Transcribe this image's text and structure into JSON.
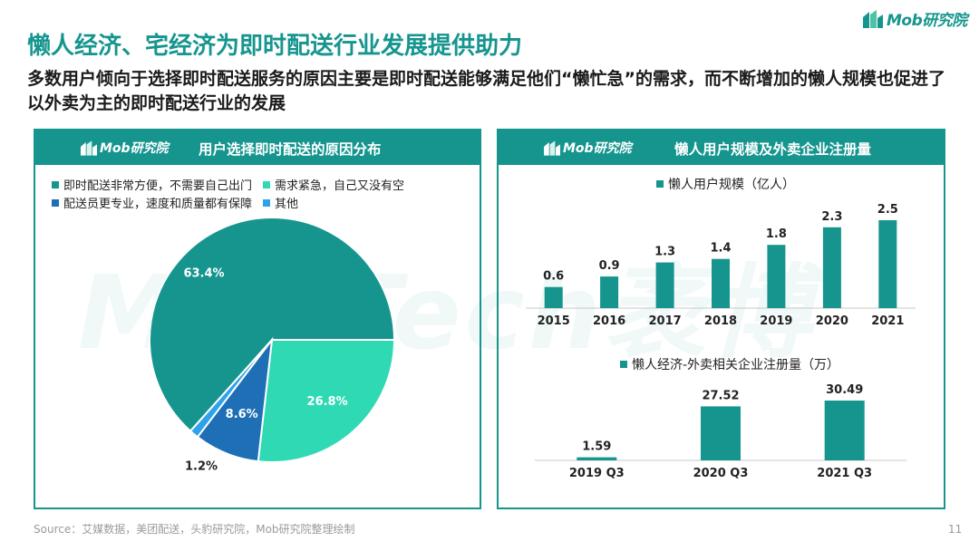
{
  "brand": {
    "logo_text": "Mob研究院",
    "watermark_text": "MobTech袤博"
  },
  "title": "懒人经济、宅经济为即时配送行业发展提供助力",
  "subtitle": "多数用户倾向于选择即时配送服务的原因主要是即时配送能够满足他们“懒忙急”的需求，而不断增加的懒人规模也促进了以外卖为主的即时配送行业的发展",
  "left_panel": {
    "logo_text": "Mob研究院",
    "header_title": "用户选择即时配送的原因分布"
  },
  "right_panel": {
    "logo_text": "Mob研究院",
    "header_title": "懒人用户规模及外卖企业注册量"
  },
  "source": "Source：艾媒数据，美团配送，头豹研究院，Mob研究院整理绘制",
  "page_number": "11",
  "colors": {
    "brand": "#16958f",
    "pie": [
      "#16958f",
      "#2fd9b4",
      "#1e6fb5",
      "#2ea2ea"
    ]
  },
  "chart_data": [
    {
      "type": "pie",
      "title": "用户选择即时配送的原因分布",
      "categories": [
        "即时配送非常方便，不需要自己出门",
        "需求紧急，自己又没有空",
        "配送员更专业，速度和质量都有保障",
        "其他"
      ],
      "values": [
        63.4,
        26.8,
        8.6,
        1.2
      ],
      "labels": [
        "63.4%",
        "26.8%",
        "8.6%",
        "1.2%"
      ],
      "unit": "%",
      "legend_position": "top-left"
    },
    {
      "type": "bar",
      "series": [
        {
          "name": "懒人用户规模（亿人）",
          "values": [
            0.6,
            0.9,
            1.3,
            1.4,
            1.8,
            2.3,
            2.5
          ]
        }
      ],
      "categories": [
        "2015",
        "2016",
        "2017",
        "2018",
        "2019",
        "2020",
        "2021"
      ],
      "ylim": [
        0,
        2.5
      ],
      "grid": false,
      "legend_position": "top"
    },
    {
      "type": "bar",
      "series": [
        {
          "name": "懒人经济-外卖相关企业注册量（万）",
          "values": [
            1.59,
            27.52,
            30.49
          ]
        }
      ],
      "categories": [
        "2019 Q3",
        "2020 Q3",
        "2021 Q3"
      ],
      "ylim": [
        0,
        30.49
      ],
      "grid": false,
      "legend_position": "top"
    }
  ]
}
